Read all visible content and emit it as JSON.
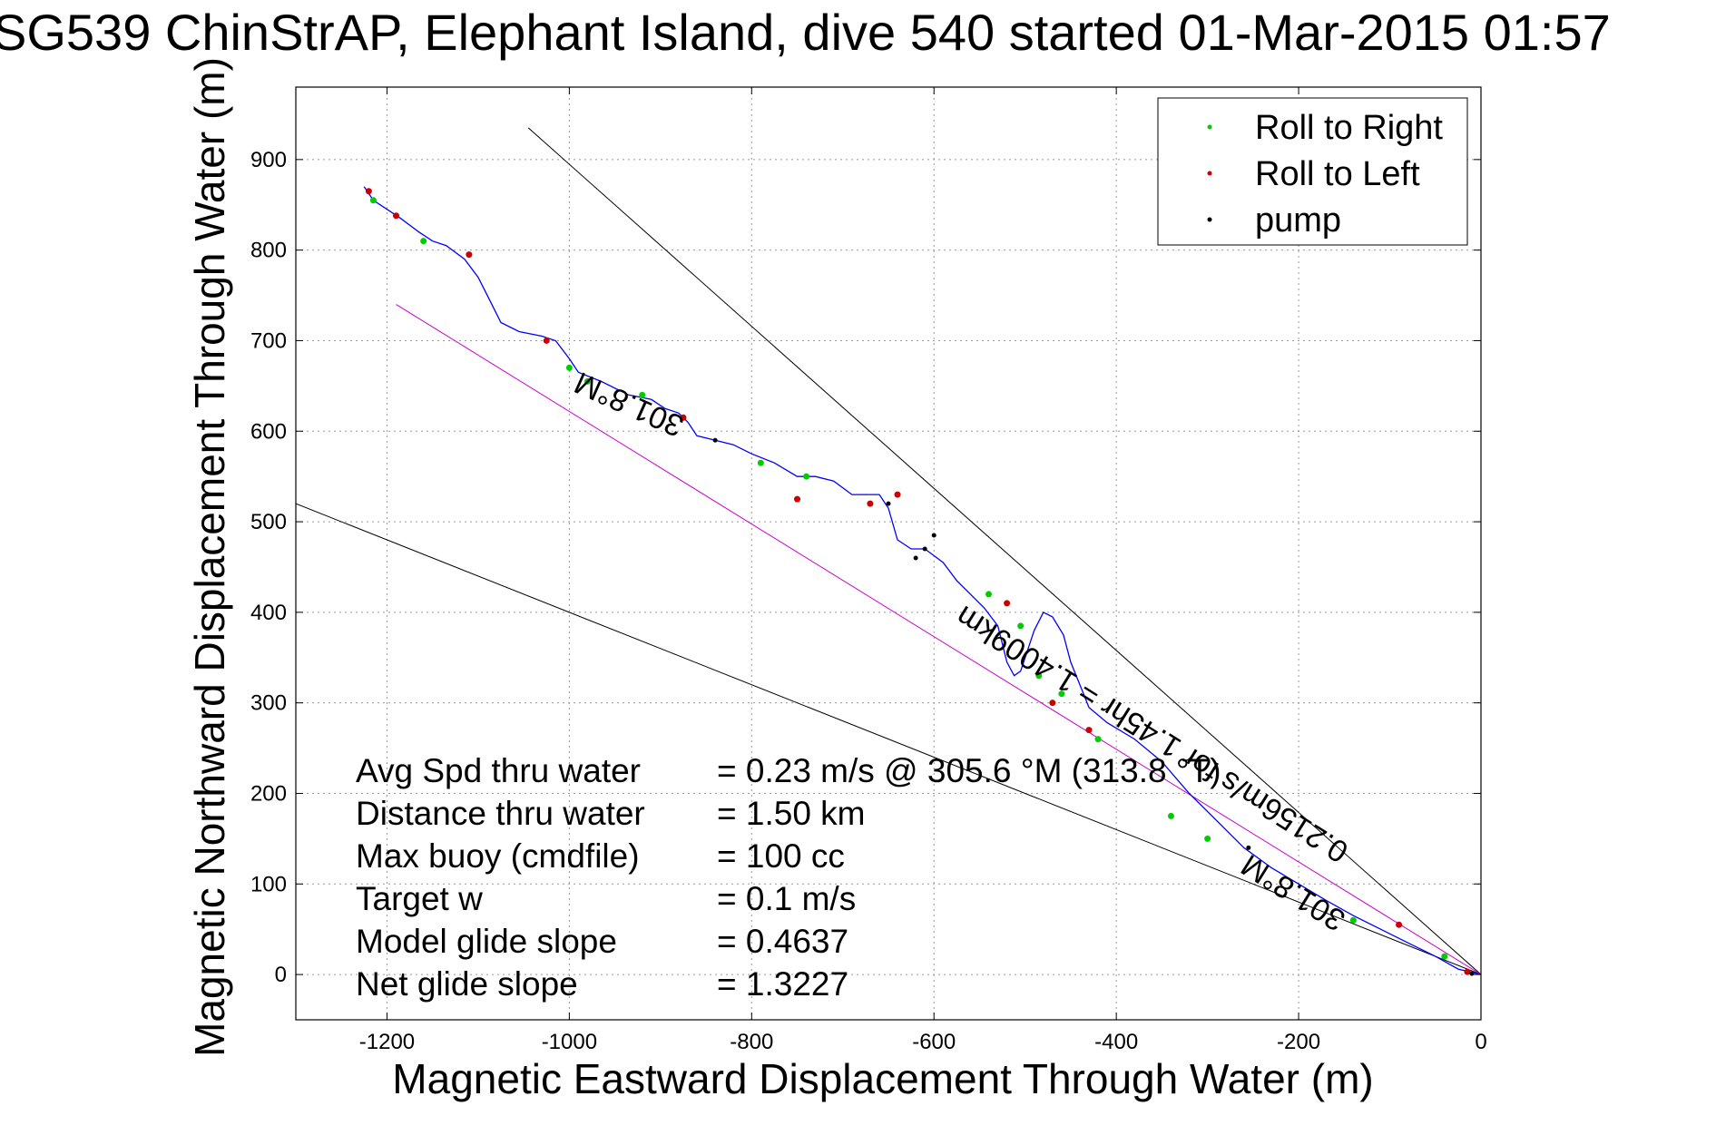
{
  "chart_data": {
    "type": "line",
    "title": "SG539 ChinStrAP, Elephant Island, dive 540 started 01-Mar-2015 01:57",
    "xlabel": "Magnetic Eastward Displacement Through Water (m)",
    "ylabel": "Magnetic Northward Displacement Through Water (m)",
    "xlim": [
      -1300,
      0
    ],
    "ylim": [
      -50,
      980
    ],
    "xticks": [
      -1200,
      -1000,
      -800,
      -600,
      -400,
      -200,
      0
    ],
    "yticks": [
      0,
      100,
      200,
      300,
      400,
      500,
      600,
      700,
      800,
      900
    ],
    "grid": true,
    "legend_position": "top-right",
    "legend": [
      {
        "label": "Roll to Right",
        "color": "#00cc00"
      },
      {
        "label": "Roll to Left",
        "color": "#cc0000"
      },
      {
        "label": "pump",
        "color": "#000000"
      }
    ],
    "track": {
      "color": "#0000ff",
      "x": [
        0,
        -25,
        -50,
        -80,
        -110,
        -140,
        -170,
        -200,
        -230,
        -260,
        -290,
        -320,
        -350,
        -380,
        -410,
        -430,
        -440,
        -450,
        -458,
        -470,
        -480,
        -490,
        -500,
        -505,
        -512,
        -520,
        -530,
        -545,
        -560,
        -575,
        -590,
        -610,
        -625,
        -640,
        -650,
        -660,
        -670,
        -690,
        -710,
        -730,
        -750,
        -775,
        -800,
        -820,
        -840,
        -860,
        -870,
        -880,
        -895,
        -910,
        -935,
        -965,
        -990,
        -1000,
        -1015,
        -1030,
        -1055,
        -1075,
        -1090,
        -1100,
        -1115,
        -1135,
        -1150,
        -1165,
        -1185,
        -1200,
        -1215,
        -1225
      ],
      "y": [
        0,
        6,
        20,
        35,
        50,
        65,
        82,
        100,
        118,
        140,
        170,
        200,
        235,
        260,
        278,
        295,
        320,
        345,
        375,
        395,
        400,
        380,
        350,
        335,
        330,
        345,
        385,
        405,
        420,
        435,
        455,
        470,
        470,
        480,
        515,
        530,
        530,
        530,
        545,
        550,
        550,
        565,
        575,
        585,
        590,
        595,
        610,
        620,
        625,
        635,
        640,
        655,
        665,
        680,
        700,
        705,
        710,
        720,
        750,
        770,
        790,
        805,
        810,
        820,
        835,
        845,
        855,
        870
      ]
    },
    "roll_right_points": {
      "color": "#00cc00",
      "x": [
        -40,
        -140,
        -300,
        -340,
        -420,
        -460,
        -485,
        -505,
        -540,
        -740,
        -790,
        -920,
        -980,
        -1000,
        -1160,
        -1215
      ],
      "y": [
        20,
        60,
        150,
        175,
        260,
        310,
        330,
        385,
        420,
        550,
        565,
        640,
        655,
        670,
        810,
        855
      ]
    },
    "roll_left_points": {
      "color": "#cc0000",
      "x": [
        -15,
        -90,
        -430,
        -470,
        -520,
        -640,
        -670,
        -750,
        -875,
        -1025,
        -1110,
        -1190,
        -1220
      ],
      "y": [
        3,
        55,
        270,
        300,
        410,
        530,
        520,
        525,
        615,
        700,
        795,
        838,
        865
      ]
    },
    "pump_points": {
      "color": "#000000",
      "x": [
        -10,
        -255,
        -600,
        -610,
        -620,
        -650,
        -840
      ],
      "y": [
        1,
        140,
        485,
        470,
        460,
        520,
        590
      ]
    },
    "reference_lines": [
      {
        "name": "Upper bound",
        "color": "#000000",
        "x": [
          0,
          -1045
        ],
        "y": [
          0,
          935
        ]
      },
      {
        "name": "Lower bound",
        "color": "#000000",
        "x": [
          0,
          -1300
        ],
        "y": [
          0,
          520
        ]
      },
      {
        "name": "Model track",
        "color": "#cc00cc",
        "x": [
          0,
          -1190
        ],
        "y": [
          0,
          740
        ]
      }
    ],
    "plot_annotations": [
      {
        "text": "301.8°M",
        "x": -930,
        "y": 640,
        "rotate_deg": 24
      },
      {
        "text": "301.8°M",
        "x": -200,
        "y": 100,
        "rotate_deg": 32
      },
      {
        "text": "0.2156m/s for 1.45hr = 1.4009km",
        "x": -355,
        "y": 275,
        "rotate_deg": 32
      }
    ],
    "stats": [
      {
        "label": "Avg Spd thru water",
        "value": "=  0.23 m/s @ 305.6 °M (313.8 °T)"
      },
      {
        "label": "Distance thru water",
        "value": "=  1.50 km"
      },
      {
        "label": "Max buoy (cmdfile)",
        "value": "= 100 cc"
      },
      {
        "label": "Target w",
        "value": "= 0.1 m/s"
      },
      {
        "label": "Model glide slope",
        "value": "= 0.4637"
      },
      {
        "label": "Net glide slope",
        "value": "= 1.3227"
      }
    ]
  }
}
